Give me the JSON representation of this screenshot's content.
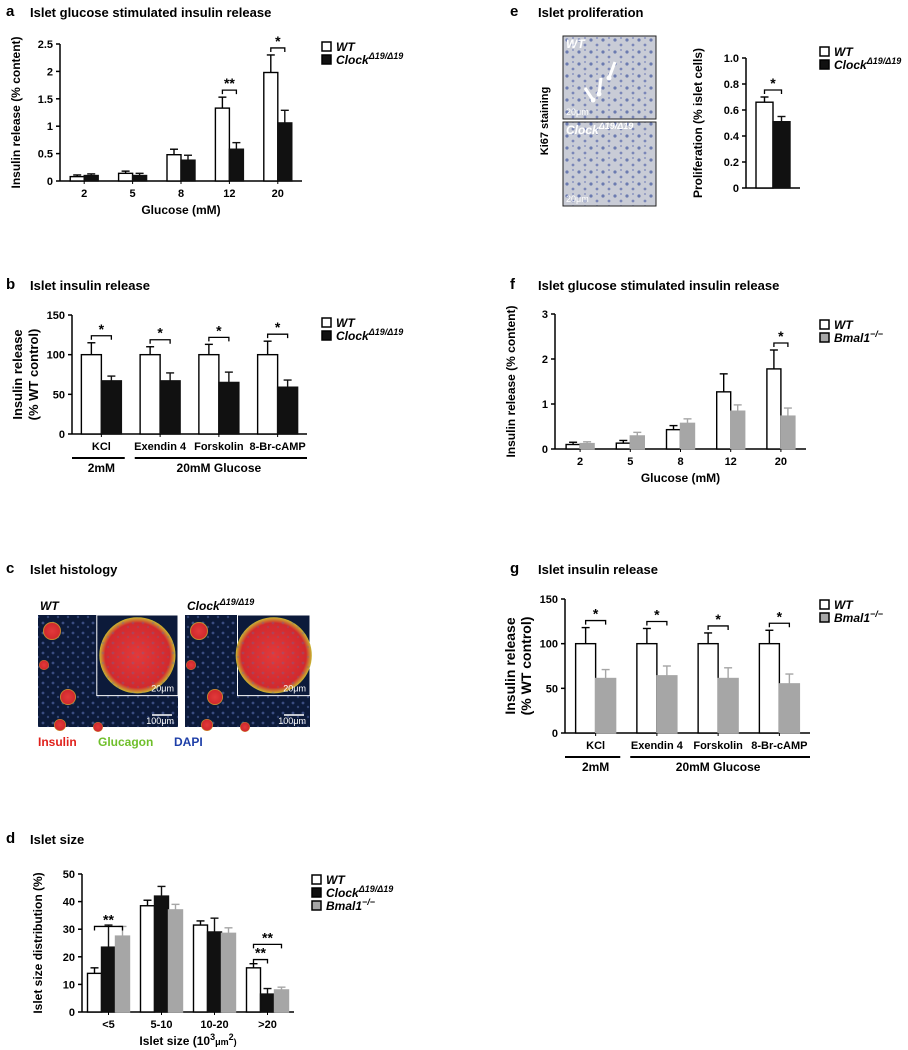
{
  "colors": {
    "wt": "#ffffff",
    "clock": "#111111",
    "bmal": "#a6a6a6",
    "axis": "#000000",
    "insulin_label": "#e0201b",
    "glucagon_label": "#6fbf2b",
    "dapi_label": "#1e3fa8"
  },
  "panels": {
    "a": {
      "letter": "a",
      "title": "Islet glucose stimulated insulin release",
      "legend": [
        {
          "key": "wt",
          "label": "WT"
        },
        {
          "key": "clock",
          "label": "Clock",
          "sup": "Δ19/Δ19"
        }
      ]
    },
    "b": {
      "letter": "b",
      "title": "Islet insulin release",
      "legend": [
        {
          "key": "wt",
          "label": "WT"
        },
        {
          "key": "clock",
          "label": "Clock",
          "sup": "Δ19/Δ19"
        }
      ],
      "group_labels": [
        "2mM",
        "20mM Glucose"
      ]
    },
    "c": {
      "letter": "c",
      "title": "Islet histology",
      "image_labels": [
        {
          "label": "WT"
        },
        {
          "label": "Clock",
          "sup": "Δ19/Δ19"
        }
      ],
      "scale_small": "20μm",
      "scale_large": "100μm",
      "stain_labels": [
        {
          "text": "Insulin",
          "color": "insulin_label"
        },
        {
          "text": "Glucagon",
          "color": "glucagon_label"
        },
        {
          "text": "DAPI",
          "color": "dapi_label"
        }
      ]
    },
    "d": {
      "letter": "d",
      "title": "Islet size",
      "legend": [
        {
          "key": "wt",
          "label": "WT"
        },
        {
          "key": "clock",
          "label": "Clock",
          "sup": "Δ19/Δ19"
        },
        {
          "key": "bmal",
          "label": "Bmal1",
          "sup": "−/−"
        }
      ]
    },
    "e": {
      "letter": "e",
      "title": "Islet proliferation",
      "side_label": "Ki67 staining",
      "image_labels": [
        {
          "label": "WT"
        },
        {
          "label": "Clock",
          "sup": "Δ19/Δ19"
        }
      ],
      "scale": "20μm",
      "legend": [
        {
          "key": "wt",
          "label": "WT"
        },
        {
          "key": "clock",
          "label": "Clock",
          "sup": "Δ19/Δ19"
        }
      ]
    },
    "f": {
      "letter": "f",
      "title": "Islet glucose stimulated insulin release",
      "legend": [
        {
          "key": "wt",
          "label": "WT"
        },
        {
          "key": "bmal",
          "label": "Bmal1",
          "sup": "−/−"
        }
      ]
    },
    "g": {
      "letter": "g",
      "title": "Islet insulin release",
      "legend": [
        {
          "key": "wt",
          "label": "WT"
        },
        {
          "key": "bmal",
          "label": "Bmal1",
          "sup": "−/−"
        }
      ],
      "group_labels": [
        "2mM",
        "20mM Glucose"
      ]
    }
  },
  "chart_data": [
    {
      "id": "a",
      "type": "bar",
      "xlabel": "Glucose (mM)",
      "ylabel": "Insulin release (% content)",
      "ylim": [
        0,
        2.5
      ],
      "yticks": [
        "0",
        "0.5",
        "1",
        "1.5",
        "2",
        "2.5"
      ],
      "categories": [
        "2",
        "5",
        "8",
        "12",
        "20"
      ],
      "series": [
        {
          "key": "wt",
          "name": "WT",
          "values": [
            0.08,
            0.14,
            0.48,
            1.33,
            1.98
          ],
          "errors": [
            0.03,
            0.04,
            0.1,
            0.2,
            0.32
          ]
        },
        {
          "key": "clock",
          "name": "ClockΔ19/Δ19",
          "values": [
            0.1,
            0.1,
            0.38,
            0.58,
            1.06
          ],
          "errors": [
            0.03,
            0.04,
            0.09,
            0.12,
            0.23
          ]
        }
      ],
      "significance": [
        {
          "cat": 3,
          "text": "**"
        },
        {
          "cat": 4,
          "text": "*"
        }
      ]
    },
    {
      "id": "b",
      "type": "bar",
      "ylabel": "Insulin release (% WT control)",
      "ylim": [
        0,
        150
      ],
      "yticks": [
        "0",
        "50",
        "100",
        "150"
      ],
      "categories": [
        "KCl",
        "Exendin 4",
        "Forskolin",
        "8-Br-cAMP"
      ],
      "series": [
        {
          "key": "wt",
          "name": "WT",
          "values": [
            100,
            100,
            100,
            100
          ],
          "errors": [
            15,
            10,
            13,
            17
          ]
        },
        {
          "key": "clock",
          "name": "ClockΔ19/Δ19",
          "values": [
            67,
            67,
            65,
            59
          ],
          "errors": [
            6,
            10,
            13,
            9
          ]
        }
      ],
      "significance": [
        {
          "cat": 0,
          "text": "*"
        },
        {
          "cat": 1,
          "text": "*"
        },
        {
          "cat": 2,
          "text": "*"
        },
        {
          "cat": 3,
          "text": "*"
        }
      ]
    },
    {
      "id": "d",
      "type": "bar",
      "xlabel": "Islet size (10³μm²)",
      "ylabel": "Islet size distribution (%)",
      "ylim": [
        0,
        50
      ],
      "yticks": [
        "0",
        "10",
        "20",
        "30",
        "40",
        "50"
      ],
      "categories": [
        "<5",
        "5-10",
        "10-20",
        ">20"
      ],
      "series": [
        {
          "key": "wt",
          "name": "WT",
          "values": [
            14,
            38.5,
            31.5,
            16
          ],
          "errors": [
            2,
            2,
            1.5,
            1.5
          ]
        },
        {
          "key": "clock",
          "name": "ClockΔ19/Δ19",
          "values": [
            23.5,
            42,
            29,
            6.5
          ],
          "errors": [
            8,
            3.5,
            5,
            2
          ]
        },
        {
          "key": "bmal",
          "name": "Bmal1−/−",
          "values": [
            27.5,
            37,
            28.5,
            8
          ],
          "errors": [
            3.5,
            2,
            2,
            1
          ]
        }
      ],
      "significance": [
        {
          "cat": 0,
          "from": 0,
          "to": 2,
          "text": "**",
          "y": 31
        },
        {
          "cat": 3,
          "from": 0,
          "to": 1,
          "text": "**",
          "y": 19
        },
        {
          "cat": 3,
          "from": 0,
          "to": 2,
          "text": "**",
          "y": 24.5
        }
      ]
    },
    {
      "id": "e",
      "type": "bar",
      "ylabel": "Proliferation (% islet cells)",
      "ylim": [
        0,
        1.0
      ],
      "yticks": [
        "0",
        "0.2",
        "0.4",
        "0.6",
        "0.8",
        "1.0"
      ],
      "categories": [
        ""
      ],
      "series": [
        {
          "key": "wt",
          "name": "WT",
          "values": [
            0.66
          ],
          "errors": [
            0.04
          ]
        },
        {
          "key": "clock",
          "name": "ClockΔ19/Δ19",
          "values": [
            0.51
          ],
          "errors": [
            0.04
          ]
        }
      ],
      "significance": [
        {
          "cat": 0,
          "text": "*"
        }
      ]
    },
    {
      "id": "f",
      "type": "bar",
      "xlabel": "Glucose (mM)",
      "ylabel": "Insulin release (% content)",
      "ylim": [
        0,
        3
      ],
      "yticks": [
        "0",
        "1",
        "2",
        "3"
      ],
      "categories": [
        "2",
        "5",
        "8",
        "12",
        "20"
      ],
      "series": [
        {
          "key": "wt",
          "name": "WT",
          "values": [
            0.1,
            0.13,
            0.43,
            1.27,
            1.78
          ],
          "errors": [
            0.05,
            0.06,
            0.09,
            0.4,
            0.42
          ]
        },
        {
          "key": "bmal",
          "name": "Bmal1−/−",
          "values": [
            0.12,
            0.29,
            0.57,
            0.84,
            0.73
          ],
          "errors": [
            0.04,
            0.08,
            0.1,
            0.14,
            0.18
          ]
        }
      ],
      "significance": [
        {
          "cat": 4,
          "text": "*"
        }
      ]
    },
    {
      "id": "g",
      "type": "bar",
      "ylabel": "Insulin release (% WT control)",
      "ylim": [
        0,
        150
      ],
      "yticks": [
        "0",
        "50",
        "100",
        "150"
      ],
      "categories": [
        "KCl",
        "Exendin 4",
        "Forskolin",
        "8-Br-cAMP"
      ],
      "series": [
        {
          "key": "wt",
          "name": "WT",
          "values": [
            100,
            100,
            100,
            100
          ],
          "errors": [
            18,
            17,
            12,
            15
          ]
        },
        {
          "key": "bmal",
          "name": "Bmal1−/−",
          "values": [
            61,
            64,
            61,
            55
          ],
          "errors": [
            10,
            11,
            12,
            11
          ]
        }
      ],
      "significance": [
        {
          "cat": 0,
          "text": "*"
        },
        {
          "cat": 1,
          "text": "*"
        },
        {
          "cat": 2,
          "text": "*"
        },
        {
          "cat": 3,
          "text": "*"
        }
      ]
    }
  ]
}
